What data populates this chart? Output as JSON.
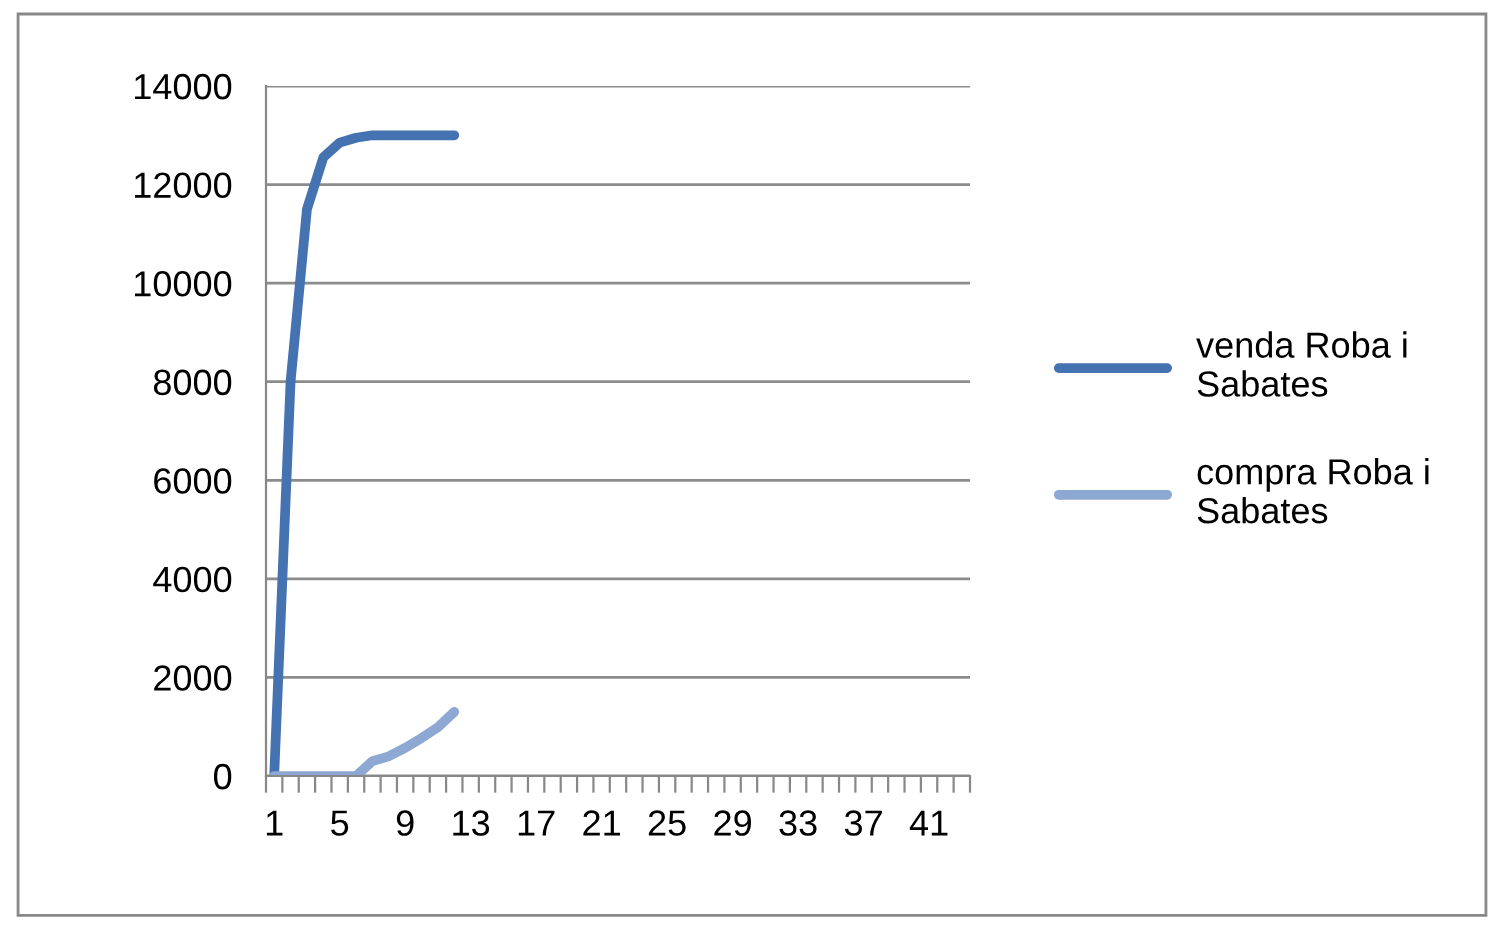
{
  "chart_data": {
    "type": "line",
    "categories": [
      "1",
      null,
      null,
      null,
      "5",
      null,
      null,
      null,
      "9",
      null,
      null,
      null,
      "13",
      null,
      null,
      null,
      "17",
      null,
      null,
      null,
      "21",
      null,
      null,
      null,
      "25",
      null,
      null,
      null,
      "29",
      null,
      null,
      null,
      "33",
      null,
      null,
      null,
      "37",
      null,
      null,
      null,
      "41",
      null,
      null
    ],
    "series": [
      {
        "name": "venda Roba i Sabates",
        "color": "#4572b0",
        "values": [
          0,
          8000,
          11500,
          12550,
          12850,
          12950,
          13000,
          13000,
          13000,
          13000,
          13000,
          13000,
          null,
          null,
          null,
          null,
          null,
          null,
          null,
          null,
          null,
          null,
          null,
          null,
          null,
          null,
          null,
          null,
          null,
          null,
          null,
          null,
          null,
          null,
          null,
          null,
          null,
          null,
          null,
          null,
          null,
          null,
          null
        ]
      },
      {
        "name": "compra Roba i Sabates",
        "color": "#8ea8d4",
        "values": [
          0,
          0,
          0,
          0,
          0,
          0,
          300,
          400,
          570,
          770,
          990,
          1300,
          null,
          null,
          null,
          null,
          null,
          null,
          null,
          null,
          null,
          null,
          null,
          null,
          null,
          null,
          null,
          null,
          null,
          null,
          null,
          null,
          null,
          null,
          null,
          null,
          null,
          null,
          null,
          null,
          null,
          null,
          null
        ]
      }
    ],
    "ylim": [
      0,
      14000
    ],
    "yticks": [
      0,
      2000,
      4000,
      6000,
      8000,
      10000,
      12000,
      14000
    ],
    "grid": "y",
    "legend": "right",
    "marker": "none",
    "line_style": "solid"
  }
}
